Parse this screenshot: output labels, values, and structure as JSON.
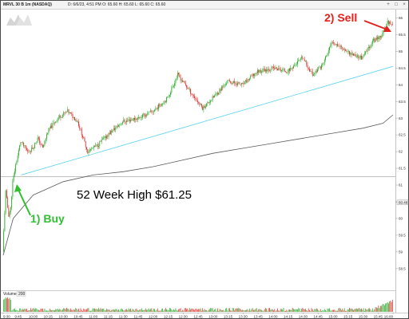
{
  "window": {
    "symbol_label": "MRVL 30 B 1m (NASDAQ)",
    "ohlc_text": "D: 6/6/23, 4:51 PM  O: 65.60  H: 65.60  L: 65.60  C: 65.60",
    "controls": [
      "+",
      "□",
      "×"
    ]
  },
  "colors": {
    "up": "#27a827",
    "down": "#d9302c",
    "trendline": "#5cd4f0",
    "vwap": "#5a5a5a",
    "reference_line": "#9a9a9a",
    "buy": "#2fbf2f",
    "sell": "#e3201b"
  },
  "volume_panel": {
    "label": "Volume",
    "value": "200"
  },
  "annotations": {
    "reference_text": "52 Week High $61.25",
    "buy_text": "1) Buy",
    "sell_text": "2) Sell"
  },
  "chart_data": {
    "type": "candlestick",
    "title": "",
    "xlabel": "",
    "ylabel": "",
    "ylim": [
      57.9,
      66.2
    ],
    "x_ticks": [
      "9:30",
      "9:45",
      "10:00",
      "10:15",
      "10:30",
      "10:45",
      "11:00",
      "11:15",
      "11:30",
      "11:45",
      "12:00",
      "12:15",
      "12:30",
      "12:45",
      "13:00",
      "13:15",
      "13:30",
      "13:45",
      "14:00",
      "14:15",
      "14:30",
      "14:45",
      "15:00",
      "15:15",
      "15:30",
      "15:45",
      "16:00"
    ],
    "y_ticks": [
      {
        "value": 66.0,
        "label": "66"
      },
      {
        "value": 65.5,
        "label": "65.5"
      },
      {
        "value": 65.0,
        "label": "65"
      },
      {
        "value": 64.5,
        "label": "64.5"
      },
      {
        "value": 64.0,
        "label": "64"
      },
      {
        "value": 63.5,
        "label": "63.5"
      },
      {
        "value": 63.0,
        "label": "63"
      },
      {
        "value": 62.5,
        "label": "62.5"
      },
      {
        "value": 62.0,
        "label": "62"
      },
      {
        "value": 61.5,
        "label": "61.5"
      },
      {
        "value": 61.0,
        "label": "61"
      },
      {
        "value": 60.5,
        "label": "60.5"
      },
      {
        "value": 60.48,
        "label": "60.48"
      },
      {
        "value": 60.0,
        "label": "60"
      },
      {
        "value": 59.5,
        "label": "59.5"
      },
      {
        "value": 59.0,
        "label": "59"
      },
      {
        "value": 58.5,
        "label": "58.5"
      }
    ],
    "reference_level": 61.25,
    "price_path": [
      {
        "t": "9:30",
        "p": 59.0
      },
      {
        "t": "9:33",
        "p": 60.8
      },
      {
        "t": "9:36",
        "p": 60.1
      },
      {
        "t": "9:38",
        "p": 60.3
      },
      {
        "t": "9:40",
        "p": 61.1
      },
      {
        "t": "9:43",
        "p": 61.6
      },
      {
        "t": "9:48",
        "p": 62.3
      },
      {
        "t": "9:55",
        "p": 62.0
      },
      {
        "t": "10:00",
        "p": 62.1
      },
      {
        "t": "10:05",
        "p": 62.4
      },
      {
        "t": "10:10",
        "p": 62.1
      },
      {
        "t": "10:15",
        "p": 62.6
      },
      {
        "t": "10:25",
        "p": 63.0
      },
      {
        "t": "10:35",
        "p": 63.2
      },
      {
        "t": "10:45",
        "p": 62.9
      },
      {
        "t": "10:55",
        "p": 62.0
      },
      {
        "t": "11:05",
        "p": 62.2
      },
      {
        "t": "11:15",
        "p": 62.5
      },
      {
        "t": "11:30",
        "p": 62.9
      },
      {
        "t": "11:45",
        "p": 63.0
      },
      {
        "t": "12:00",
        "p": 63.2
      },
      {
        "t": "12:15",
        "p": 63.6
      },
      {
        "t": "12:25",
        "p": 64.3
      },
      {
        "t": "12:35",
        "p": 63.9
      },
      {
        "t": "12:50",
        "p": 63.3
      },
      {
        "t": "13:00",
        "p": 63.6
      },
      {
        "t": "13:15",
        "p": 64.1
      },
      {
        "t": "13:30",
        "p": 64.0
      },
      {
        "t": "13:45",
        "p": 64.4
      },
      {
        "t": "14:00",
        "p": 64.5
      },
      {
        "t": "14:15",
        "p": 64.4
      },
      {
        "t": "14:30",
        "p": 64.8
      },
      {
        "t": "14:40",
        "p": 64.3
      },
      {
        "t": "14:50",
        "p": 64.6
      },
      {
        "t": "15:00",
        "p": 65.3
      },
      {
        "t": "15:10",
        "p": 65.1
      },
      {
        "t": "15:20",
        "p": 64.9
      },
      {
        "t": "15:30",
        "p": 64.8
      },
      {
        "t": "15:40",
        "p": 65.3
      },
      {
        "t": "15:50",
        "p": 65.5
      },
      {
        "t": "15:55",
        "p": 65.9
      },
      {
        "t": "16:00",
        "p": 65.8
      }
    ],
    "trendline": [
      {
        "t": "9:48",
        "p": 61.3
      },
      {
        "t": "16:00",
        "p": 64.55
      }
    ],
    "vwap": [
      {
        "t": "9:30",
        "p": 58.9
      },
      {
        "t": "9:40",
        "p": 60.0
      },
      {
        "t": "10:00",
        "p": 60.7
      },
      {
        "t": "10:30",
        "p": 61.1
      },
      {
        "t": "11:00",
        "p": 61.3
      },
      {
        "t": "11:30",
        "p": 61.4
      },
      {
        "t": "12:00",
        "p": 61.55
      },
      {
        "t": "12:30",
        "p": 61.75
      },
      {
        "t": "13:00",
        "p": 61.95
      },
      {
        "t": "13:30",
        "p": 62.1
      },
      {
        "t": "14:00",
        "p": 62.25
      },
      {
        "t": "14:30",
        "p": 62.4
      },
      {
        "t": "15:00",
        "p": 62.55
      },
      {
        "t": "15:30",
        "p": 62.7
      },
      {
        "t": "15:50",
        "p": 62.85
      },
      {
        "t": "16:00",
        "p": 63.1
      }
    ]
  }
}
